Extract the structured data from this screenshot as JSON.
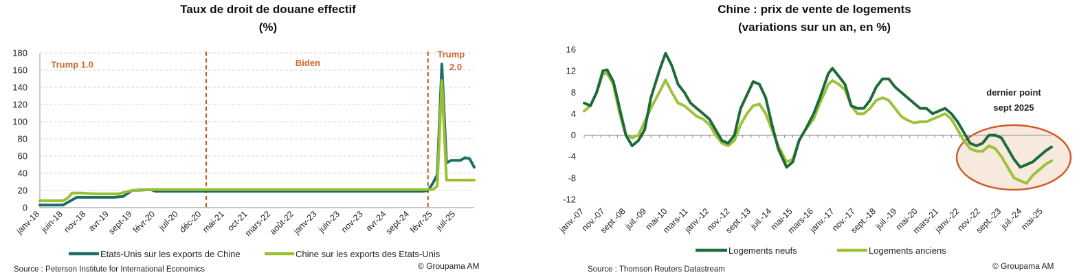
{
  "left": {
    "title_line1": "Taux de droit de douane effectif",
    "title_line2": "(%)",
    "source": "Source : Peterson Institute for International Economics",
    "copyright": "© Groupama AM"
  },
  "right": {
    "title_line1": "Chine : prix de vente de logements",
    "title_line2": "(variations sur un an, en %)",
    "source": "Source :  Thomson Reuters Datastream",
    "copyright": "© Groupama AM"
  },
  "chart_data": [
    {
      "type": "line",
      "title": "Taux de droit de douane effectif (%)",
      "ylim": [
        0,
        180
      ],
      "yticks": [
        0,
        20,
        40,
        60,
        80,
        100,
        120,
        140,
        160,
        180
      ],
      "x_range": [
        "2018-01",
        "2025-11"
      ],
      "x_tick_labels": [
        {
          "label": "janv-18",
          "date": "2018-01"
        },
        {
          "label": "juin-18",
          "date": "2018-06"
        },
        {
          "label": "nov-18",
          "date": "2018-11"
        },
        {
          "label": "avr-19",
          "date": "2019-04"
        },
        {
          "label": "sept-19",
          "date": "2019-09"
        },
        {
          "label": "févr-20",
          "date": "2020-02"
        },
        {
          "label": "juil-20",
          "date": "2020-07"
        },
        {
          "label": "déc-20",
          "date": "2020-12"
        },
        {
          "label": "mai-21",
          "date": "2021-05"
        },
        {
          "label": "oct-21",
          "date": "2021-10"
        },
        {
          "label": "mars-22",
          "date": "2022-03"
        },
        {
          "label": "août-22",
          "date": "2022-08"
        },
        {
          "label": "janv-23",
          "date": "2023-01"
        },
        {
          "label": "juin-23",
          "date": "2023-06"
        },
        {
          "label": "nov-23",
          "date": "2023-11"
        },
        {
          "label": "avr-24",
          "date": "2024-04"
        },
        {
          "label": "sept-24",
          "date": "2024-09"
        },
        {
          "label": "févr-25",
          "date": "2025-02"
        },
        {
          "label": "juil-25",
          "date": "2025-07"
        }
      ],
      "annotations": [
        {
          "text": "Trump 1.0",
          "x": "2018-08",
          "y": 163
        },
        {
          "text": "Biden",
          "x": "2022-11",
          "y": 165
        },
        {
          "text": "Trump",
          "x": "2025-06",
          "y": 175
        },
        {
          "text": "2.0",
          "x": "2025-07",
          "y": 160
        }
      ],
      "vlines": [
        "2021-01",
        "2025-01"
      ],
      "series": [
        {
          "name": "Etats-Unis sur les exports de Chine",
          "color": "#1d6e6a",
          "points": [
            [
              "2018-01",
              3
            ],
            [
              "2018-06",
              3
            ],
            [
              "2018-07",
              6
            ],
            [
              "2018-09",
              12
            ],
            [
              "2018-12",
              12
            ],
            [
              "2019-05",
              12
            ],
            [
              "2019-07",
              13
            ],
            [
              "2019-09",
              20
            ],
            [
              "2020-01",
              21
            ],
            [
              "2020-02",
              19
            ],
            [
              "2021-06",
              19
            ],
            [
              "2023-06",
              19
            ],
            [
              "2024-10",
              19
            ],
            [
              "2024-12",
              19
            ],
            [
              "2025-01",
              20
            ],
            [
              "2025-02",
              28
            ],
            [
              "2025-03",
              38
            ],
            [
              "2025-04",
              167
            ],
            [
              "2025-05",
              52
            ],
            [
              "2025-06",
              55
            ],
            [
              "2025-08",
              55
            ],
            [
              "2025-09",
              58
            ],
            [
              "2025-10",
              57
            ],
            [
              "2025-11",
              47
            ]
          ]
        },
        {
          "name": "Chine sur les exports des Etats-Unis",
          "color": "#9cbf2f",
          "points": [
            [
              "2018-01",
              8
            ],
            [
              "2018-06",
              8
            ],
            [
              "2018-07",
              11
            ],
            [
              "2018-08",
              17
            ],
            [
              "2018-10",
              17
            ],
            [
              "2019-01",
              16
            ],
            [
              "2019-06",
              16
            ],
            [
              "2019-09",
              20
            ],
            [
              "2019-11",
              21
            ],
            [
              "2021-06",
              21
            ],
            [
              "2023-06",
              21
            ],
            [
              "2024-10",
              21
            ],
            [
              "2025-01",
              21
            ],
            [
              "2025-02",
              21
            ],
            [
              "2025-03",
              25
            ],
            [
              "2025-04",
              148
            ],
            [
              "2025-05",
              32
            ],
            [
              "2025-11",
              32
            ]
          ]
        }
      ]
    },
    {
      "type": "line",
      "title": "Chine : prix de vente de logements (variations sur un an, en %)",
      "ylim": [
        -12,
        16
      ],
      "yticks": [
        -12,
        -8,
        -4,
        0,
        4,
        8,
        12,
        16
      ],
      "x_range": [
        "2007-01",
        "2025-09"
      ],
      "x_tick_labels": [
        {
          "label": "janv.-07",
          "date": "2007-01"
        },
        {
          "label": "nov.-07",
          "date": "2007-11"
        },
        {
          "label": "sept.-08",
          "date": "2008-09"
        },
        {
          "label": "juil.-09",
          "date": "2009-07"
        },
        {
          "label": "mai-10",
          "date": "2010-05"
        },
        {
          "label": "mars-11",
          "date": "2011-03"
        },
        {
          "label": "janv.-12",
          "date": "2012-01"
        },
        {
          "label": "nov.-12",
          "date": "2012-11"
        },
        {
          "label": "sept.-13",
          "date": "2013-09"
        },
        {
          "label": "juil.-14",
          "date": "2014-07"
        },
        {
          "label": "mai-15",
          "date": "2015-05"
        },
        {
          "label": "mars-16",
          "date": "2016-03"
        },
        {
          "label": "janv.-17",
          "date": "2017-01"
        },
        {
          "label": "nov.-17",
          "date": "2017-11"
        },
        {
          "label": "sept.-18",
          "date": "2018-09"
        },
        {
          "label": "juil.-19",
          "date": "2019-07"
        },
        {
          "label": "mai-20",
          "date": "2020-05"
        },
        {
          "label": "mars-21",
          "date": "2021-03"
        },
        {
          "label": "janv.-22",
          "date": "2022-01"
        },
        {
          "label": "nov.-22",
          "date": "2022-11"
        },
        {
          "label": "sept.-23",
          "date": "2023-09"
        },
        {
          "label": "juil.-24",
          "date": "2024-07"
        },
        {
          "label": "mai-25",
          "date": "2025-05"
        }
      ],
      "annotation": {
        "line1": "dernier point",
        "line2": "sept 2025"
      },
      "series": [
        {
          "name": "Logements neufs",
          "color": "#1e6b3a",
          "points": [
            [
              "2007-01",
              6
            ],
            [
              "2007-04",
              5.5
            ],
            [
              "2007-07",
              8
            ],
            [
              "2007-10",
              12
            ],
            [
              "2007-12",
              12.2
            ],
            [
              "2008-03",
              10
            ],
            [
              "2008-06",
              5
            ],
            [
              "2008-09",
              0
            ],
            [
              "2008-12",
              -2
            ],
            [
              "2009-03",
              -1
            ],
            [
              "2009-06",
              1
            ],
            [
              "2009-09",
              7
            ],
            [
              "2010-01",
              12
            ],
            [
              "2010-04",
              15.3
            ],
            [
              "2010-07",
              13
            ],
            [
              "2010-10",
              9.5
            ],
            [
              "2011-01",
              8
            ],
            [
              "2011-04",
              6
            ],
            [
              "2011-07",
              5
            ],
            [
              "2011-10",
              4
            ],
            [
              "2012-01",
              3
            ],
            [
              "2012-04",
              1
            ],
            [
              "2012-07",
              -1
            ],
            [
              "2012-10",
              -1.5
            ],
            [
              "2013-01",
              0
            ],
            [
              "2013-04",
              5
            ],
            [
              "2013-07",
              7.5
            ],
            [
              "2013-10",
              10
            ],
            [
              "2014-01",
              9.5
            ],
            [
              "2014-04",
              7
            ],
            [
              "2014-07",
              2
            ],
            [
              "2014-10",
              -2.5
            ],
            [
              "2015-02",
              -6
            ],
            [
              "2015-05",
              -5
            ],
            [
              "2015-08",
              -1
            ],
            [
              "2015-11",
              1
            ],
            [
              "2016-03",
              4
            ],
            [
              "2016-06",
              7
            ],
            [
              "2016-10",
              11.5
            ],
            [
              "2016-12",
              12.5
            ],
            [
              "2017-03",
              11
            ],
            [
              "2017-06",
              9.5
            ],
            [
              "2017-09",
              5.5
            ],
            [
              "2017-12",
              5
            ],
            [
              "2018-03",
              5
            ],
            [
              "2018-06",
              6.5
            ],
            [
              "2018-09",
              9
            ],
            [
              "2018-12",
              10.5
            ],
            [
              "2019-03",
              10.5
            ],
            [
              "2019-06",
              9
            ],
            [
              "2019-09",
              8
            ],
            [
              "2019-12",
              7
            ],
            [
              "2020-03",
              6
            ],
            [
              "2020-06",
              5
            ],
            [
              "2020-09",
              5
            ],
            [
              "2020-12",
              4
            ],
            [
              "2021-03",
              4.5
            ],
            [
              "2021-06",
              5
            ],
            [
              "2021-09",
              4
            ],
            [
              "2021-12",
              2.5
            ],
            [
              "2022-03",
              0.5
            ],
            [
              "2022-06",
              -1.5
            ],
            [
              "2022-09",
              -2
            ],
            [
              "2022-12",
              -1.5
            ],
            [
              "2023-03",
              0
            ],
            [
              "2023-06",
              0
            ],
            [
              "2023-09",
              -0.5
            ],
            [
              "2023-12",
              -2.5
            ],
            [
              "2024-03",
              -4.5
            ],
            [
              "2024-06",
              -6
            ],
            [
              "2024-09",
              -5.5
            ],
            [
              "2024-12",
              -5
            ],
            [
              "2025-03",
              -4
            ],
            [
              "2025-06",
              -3
            ],
            [
              "2025-09",
              -2.2
            ]
          ]
        },
        {
          "name": "Logements anciens",
          "color": "#9cc23c",
          "points": [
            [
              "2007-01",
              4.5
            ],
            [
              "2007-04",
              5.5
            ],
            [
              "2007-07",
              8
            ],
            [
              "2007-10",
              11.5
            ],
            [
              "2007-12",
              11.5
            ],
            [
              "2008-03",
              9.5
            ],
            [
              "2008-06",
              4
            ],
            [
              "2008-09",
              0
            ],
            [
              "2008-12",
              -0.5
            ],
            [
              "2009-03",
              0
            ],
            [
              "2009-06",
              2.5
            ],
            [
              "2009-09",
              5
            ],
            [
              "2010-01",
              8
            ],
            [
              "2010-04",
              10.3
            ],
            [
              "2010-07",
              8
            ],
            [
              "2010-10",
              6
            ],
            [
              "2011-01",
              5.5
            ],
            [
              "2011-04",
              4.5
            ],
            [
              "2011-07",
              3.5
            ],
            [
              "2011-10",
              3
            ],
            [
              "2012-01",
              2
            ],
            [
              "2012-04",
              0
            ],
            [
              "2012-07",
              -1.5
            ],
            [
              "2012-10",
              -2
            ],
            [
              "2013-01",
              -1
            ],
            [
              "2013-04",
              2
            ],
            [
              "2013-07",
              4
            ],
            [
              "2013-10",
              5.5
            ],
            [
              "2014-01",
              5.8
            ],
            [
              "2014-04",
              4
            ],
            [
              "2014-07",
              1
            ],
            [
              "2014-10",
              -2
            ],
            [
              "2015-02",
              -5
            ],
            [
              "2015-05",
              -4.5
            ],
            [
              "2015-08",
              -1
            ],
            [
              "2015-11",
              1
            ],
            [
              "2016-03",
              3
            ],
            [
              "2016-06",
              6
            ],
            [
              "2016-10",
              9.5
            ],
            [
              "2016-12",
              10.2
            ],
            [
              "2017-03",
              9.5
            ],
            [
              "2017-06",
              8.5
            ],
            [
              "2017-09",
              5.5
            ],
            [
              "2017-12",
              4
            ],
            [
              "2018-03",
              4
            ],
            [
              "2018-06",
              5
            ],
            [
              "2018-09",
              6.5
            ],
            [
              "2018-12",
              7
            ],
            [
              "2019-03",
              6.5
            ],
            [
              "2019-06",
              5
            ],
            [
              "2019-09",
              3.5
            ],
            [
              "2019-12",
              2.8
            ],
            [
              "2020-03",
              2.3
            ],
            [
              "2020-06",
              2.5
            ],
            [
              "2020-09",
              2.5
            ],
            [
              "2020-12",
              3
            ],
            [
              "2021-03",
              3.5
            ],
            [
              "2021-06",
              4
            ],
            [
              "2021-09",
              3
            ],
            [
              "2021-12",
              1
            ],
            [
              "2022-03",
              -1
            ],
            [
              "2022-06",
              -2.5
            ],
            [
              "2022-09",
              -3
            ],
            [
              "2022-12",
              -3
            ],
            [
              "2023-03",
              -2
            ],
            [
              "2023-06",
              -2.5
            ],
            [
              "2023-09",
              -4
            ],
            [
              "2023-12",
              -6
            ],
            [
              "2024-03",
              -8
            ],
            [
              "2024-06",
              -8.5
            ],
            [
              "2024-09",
              -9
            ],
            [
              "2024-12",
              -7.5
            ],
            [
              "2025-03",
              -6.5
            ],
            [
              "2025-06",
              -5.5
            ],
            [
              "2025-09",
              -4.8
            ]
          ]
        }
      ]
    }
  ]
}
